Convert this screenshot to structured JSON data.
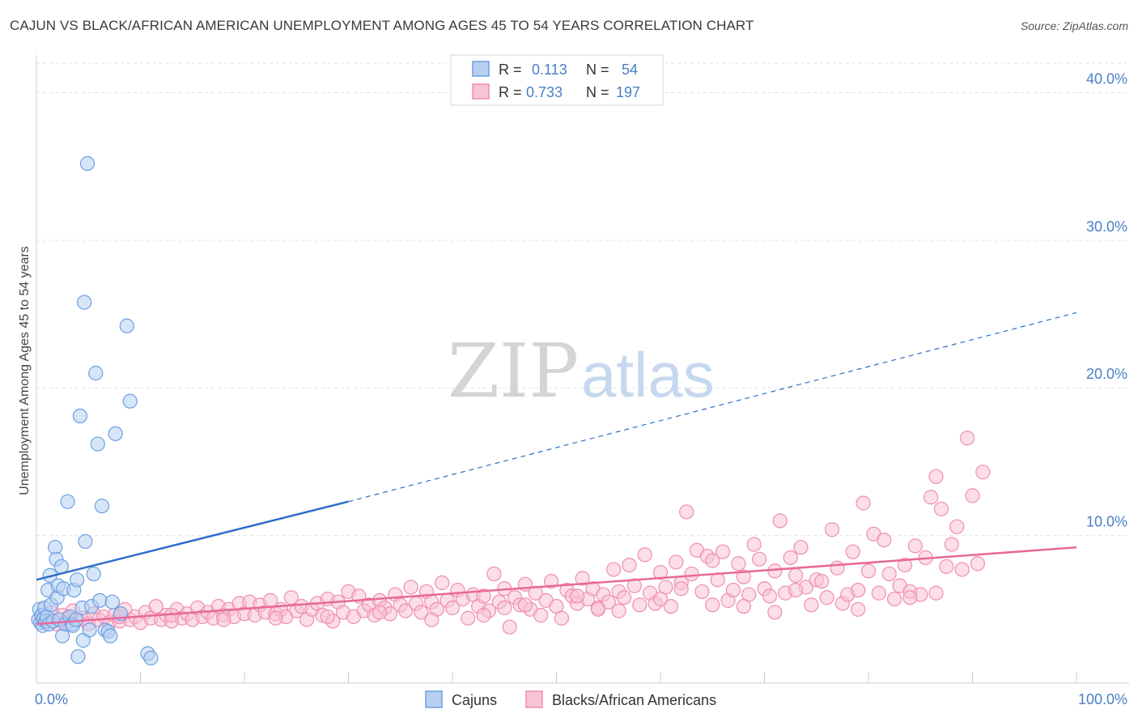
{
  "title": "CAJUN VS BLACK/AFRICAN AMERICAN UNEMPLOYMENT AMONG AGES 45 TO 54 YEARS CORRELATION CHART",
  "source": "Source: ZipAtlas.com",
  "watermark": {
    "zip": "ZIP",
    "atlas": "atlas"
  },
  "colors": {
    "cajun": "#6d9fe0",
    "cajun_fill": "#b7d0f2",
    "black": "#f08db0",
    "black_fill": "#f7c3d6",
    "cajun_line": "#2e6fc8",
    "black_line": "#e8689a",
    "tick": "#4a7fc8"
  },
  "legend": {
    "row1": {
      "r_label": "R =",
      "r_value": "0.113",
      "n_label": "N =",
      "n_value": "54"
    },
    "row2": {
      "r_label": "R =",
      "r_value": "0.733",
      "n_label": "N =",
      "n_value": "197"
    }
  },
  "chart_data": {
    "type": "scatter",
    "title": "CAJUN VS BLACK/AFRICAN AMERICAN UNEMPLOYMENT AMONG AGES 45 TO 54 YEARS CORRELATION CHART",
    "xlabel": "",
    "ylabel": "Unemployment Among Ages 45 to 54 years",
    "xlim": [
      0,
      100
    ],
    "ylim": [
      0,
      42
    ],
    "x_tick_labels": [
      "0.0%",
      "100.0%"
    ],
    "y_ticks": [
      10,
      20,
      30,
      40
    ],
    "y_tick_labels": [
      "10.0%",
      "20.0%",
      "30.0%",
      "40.0%"
    ],
    "grid": true,
    "legend_position": "bottom",
    "series": [
      {
        "name": "Cajuns",
        "r": 0.113,
        "n": 54,
        "trend": {
          "x0": 0,
          "y0": 7.0,
          "x1": 30,
          "y1": 12.3,
          "dashed_to_x": 100,
          "dashed_to_y": 25.1
        },
        "points": [
          [
            0.2,
            4.3
          ],
          [
            0.3,
            5.0
          ],
          [
            0.4,
            4.1
          ],
          [
            0.5,
            4.6
          ],
          [
            0.6,
            3.9
          ],
          [
            0.7,
            4.4
          ],
          [
            0.8,
            5.1
          ],
          [
            0.9,
            4.2
          ],
          [
            1.0,
            4.5
          ],
          [
            1.1,
            6.3
          ],
          [
            1.2,
            4.0
          ],
          [
            1.3,
            7.3
          ],
          [
            1.4,
            5.3
          ],
          [
            1.6,
            4.2
          ],
          [
            1.8,
            9.2
          ],
          [
            1.9,
            8.4
          ],
          [
            2.0,
            5.8
          ],
          [
            2.1,
            6.6
          ],
          [
            2.2,
            4.3
          ],
          [
            2.4,
            7.9
          ],
          [
            2.5,
            3.2
          ],
          [
            2.6,
            6.4
          ],
          [
            2.8,
            4.0
          ],
          [
            3.0,
            12.3
          ],
          [
            3.2,
            4.5
          ],
          [
            3.4,
            4.0
          ],
          [
            3.5,
            3.9
          ],
          [
            3.6,
            6.3
          ],
          [
            3.8,
            4.3
          ],
          [
            3.9,
            7.0
          ],
          [
            4.0,
            1.8
          ],
          [
            4.2,
            18.1
          ],
          [
            4.4,
            5.1
          ],
          [
            4.5,
            2.9
          ],
          [
            4.6,
            25.8
          ],
          [
            4.7,
            9.6
          ],
          [
            4.9,
            35.2
          ],
          [
            5.1,
            3.6
          ],
          [
            5.3,
            5.2
          ],
          [
            5.5,
            7.4
          ],
          [
            5.7,
            21.0
          ],
          [
            5.9,
            16.2
          ],
          [
            6.1,
            5.6
          ],
          [
            6.3,
            12.0
          ],
          [
            6.6,
            3.6
          ],
          [
            6.9,
            3.5
          ],
          [
            7.1,
            3.2
          ],
          [
            7.3,
            5.5
          ],
          [
            7.6,
            16.9
          ],
          [
            8.1,
            4.7
          ],
          [
            8.7,
            24.2
          ],
          [
            9.0,
            19.1
          ],
          [
            10.7,
            2.0
          ],
          [
            11.0,
            1.7
          ]
        ]
      },
      {
        "name": "Blacks/African Americans",
        "r": 0.733,
        "n": 197,
        "trend": {
          "x0": 0,
          "y0": 4.0,
          "x1": 100,
          "y1": 9.2
        },
        "points": [
          [
            0.5,
            4.5
          ],
          [
            1.0,
            4.2
          ],
          [
            1.5,
            4.8
          ],
          [
            2.0,
            4.0
          ],
          [
            2.5,
            4.6
          ],
          [
            3.0,
            4.1
          ],
          [
            3.5,
            4.9
          ],
          [
            4.0,
            4.3
          ],
          [
            4.5,
            4.4
          ],
          [
            5.0,
            4.0
          ],
          [
            5.5,
            4.7
          ],
          [
            6.0,
            4.3
          ],
          [
            6.5,
            4.5
          ],
          [
            7.0,
            4.1
          ],
          [
            7.5,
            4.6
          ],
          [
            8.0,
            4.2
          ],
          [
            8.5,
            5.0
          ],
          [
            9.0,
            4.3
          ],
          [
            9.5,
            4.5
          ],
          [
            10.0,
            4.1
          ],
          [
            10.5,
            4.8
          ],
          [
            11.0,
            4.4
          ],
          [
            11.5,
            5.2
          ],
          [
            12.0,
            4.3
          ],
          [
            12.5,
            4.6
          ],
          [
            13.0,
            4.2
          ],
          [
            13.5,
            5.0
          ],
          [
            14.0,
            4.4
          ],
          [
            14.5,
            4.7
          ],
          [
            15.0,
            4.3
          ],
          [
            15.5,
            5.1
          ],
          [
            16.0,
            4.5
          ],
          [
            16.5,
            4.8
          ],
          [
            17.0,
            4.4
          ],
          [
            17.5,
            5.2
          ],
          [
            18.0,
            4.6
          ],
          [
            18.5,
            5.0
          ],
          [
            19.0,
            4.5
          ],
          [
            19.5,
            5.4
          ],
          [
            20.0,
            4.7
          ],
          [
            20.5,
            5.5
          ],
          [
            21.0,
            4.6
          ],
          [
            21.5,
            5.3
          ],
          [
            22.0,
            4.8
          ],
          [
            22.5,
            5.6
          ],
          [
            23.0,
            4.7
          ],
          [
            23.5,
            5.0
          ],
          [
            24.0,
            4.5
          ],
          [
            24.5,
            5.8
          ],
          [
            25.0,
            4.9
          ],
          [
            25.5,
            5.2
          ],
          [
            26.0,
            4.3
          ],
          [
            26.5,
            5.0
          ],
          [
            27.0,
            5.4
          ],
          [
            27.5,
            4.6
          ],
          [
            28.0,
            5.7
          ],
          [
            28.5,
            4.2
          ],
          [
            29.0,
            5.5
          ],
          [
            29.5,
            4.8
          ],
          [
            30.0,
            6.2
          ],
          [
            30.5,
            4.5
          ],
          [
            31.0,
            5.9
          ],
          [
            31.5,
            4.9
          ],
          [
            32.0,
            5.3
          ],
          [
            32.5,
            4.6
          ],
          [
            33.0,
            5.6
          ],
          [
            33.5,
            5.1
          ],
          [
            34.0,
            4.7
          ],
          [
            34.5,
            6.0
          ],
          [
            35.0,
            5.3
          ],
          [
            35.5,
            4.9
          ],
          [
            36.0,
            6.5
          ],
          [
            36.5,
            5.4
          ],
          [
            37.0,
            4.8
          ],
          [
            37.5,
            6.2
          ],
          [
            38.0,
            5.5
          ],
          [
            38.5,
            5.0
          ],
          [
            39.0,
            6.8
          ],
          [
            39.5,
            5.6
          ],
          [
            40.0,
            5.1
          ],
          [
            40.5,
            6.3
          ],
          [
            41.0,
            5.7
          ],
          [
            41.5,
            4.4
          ],
          [
            42.0,
            6.0
          ],
          [
            42.5,
            5.2
          ],
          [
            43.0,
            5.9
          ],
          [
            43.5,
            4.9
          ],
          [
            44.0,
            7.4
          ],
          [
            44.5,
            5.5
          ],
          [
            45.0,
            6.4
          ],
          [
            45.5,
            3.8
          ],
          [
            46.0,
            5.8
          ],
          [
            46.5,
            5.3
          ],
          [
            47.0,
            6.7
          ],
          [
            47.5,
            5.0
          ],
          [
            48.0,
            6.1
          ],
          [
            48.5,
            4.6
          ],
          [
            49.0,
            5.6
          ],
          [
            49.5,
            6.9
          ],
          [
            50.0,
            5.2
          ],
          [
            50.5,
            4.4
          ],
          [
            51.0,
            6.3
          ],
          [
            51.5,
            5.9
          ],
          [
            52.0,
            5.4
          ],
          [
            52.5,
            7.1
          ],
          [
            53.0,
            5.7
          ],
          [
            53.5,
            6.4
          ],
          [
            54.0,
            5.1
          ],
          [
            54.5,
            6.0
          ],
          [
            55.0,
            5.5
          ],
          [
            55.5,
            7.7
          ],
          [
            56.0,
            6.2
          ],
          [
            56.5,
            5.8
          ],
          [
            57.0,
            8.0
          ],
          [
            57.5,
            6.6
          ],
          [
            58.0,
            5.3
          ],
          [
            58.5,
            8.7
          ],
          [
            59.0,
            6.1
          ],
          [
            59.5,
            5.4
          ],
          [
            60.0,
            7.5
          ],
          [
            60.5,
            6.5
          ],
          [
            61.0,
            5.2
          ],
          [
            61.5,
            8.2
          ],
          [
            62.0,
            6.8
          ],
          [
            62.5,
            11.6
          ],
          [
            63.0,
            7.4
          ],
          [
            63.5,
            9.0
          ],
          [
            64.0,
            6.2
          ],
          [
            64.5,
            8.6
          ],
          [
            65.0,
            5.3
          ],
          [
            65.5,
            7.0
          ],
          [
            66.0,
            8.9
          ],
          [
            66.5,
            5.6
          ],
          [
            67.0,
            6.3
          ],
          [
            67.5,
            8.1
          ],
          [
            68.0,
            7.2
          ],
          [
            68.5,
            6.0
          ],
          [
            69.0,
            9.4
          ],
          [
            69.5,
            8.4
          ],
          [
            70.0,
            6.4
          ],
          [
            70.5,
            5.9
          ],
          [
            71.0,
            7.6
          ],
          [
            71.5,
            11.0
          ],
          [
            72.0,
            6.1
          ],
          [
            72.5,
            8.5
          ],
          [
            73.0,
            7.3
          ],
          [
            73.5,
            9.2
          ],
          [
            74.0,
            6.5
          ],
          [
            74.5,
            5.3
          ],
          [
            75.0,
            7.0
          ],
          [
            75.5,
            6.9
          ],
          [
            76.0,
            5.8
          ],
          [
            76.5,
            10.4
          ],
          [
            77.0,
            7.8
          ],
          [
            77.5,
            5.4
          ],
          [
            78.0,
            6.0
          ],
          [
            78.5,
            8.9
          ],
          [
            79.0,
            6.3
          ],
          [
            79.5,
            12.2
          ],
          [
            80.0,
            7.6
          ],
          [
            80.5,
            10.1
          ],
          [
            81.0,
            6.1
          ],
          [
            81.5,
            9.7
          ],
          [
            82.0,
            7.4
          ],
          [
            82.5,
            5.7
          ],
          [
            83.0,
            6.6
          ],
          [
            83.5,
            8.0
          ],
          [
            84.0,
            6.2
          ],
          [
            84.5,
            9.3
          ],
          [
            85.0,
            6.0
          ],
          [
            85.5,
            8.5
          ],
          [
            86.0,
            12.6
          ],
          [
            86.5,
            14.0
          ],
          [
            87.0,
            11.8
          ],
          [
            87.5,
            7.9
          ],
          [
            88.0,
            9.4
          ],
          [
            88.5,
            10.6
          ],
          [
            89.0,
            7.7
          ],
          [
            89.5,
            16.6
          ],
          [
            90.0,
            12.7
          ],
          [
            90.5,
            8.1
          ],
          [
            91.0,
            14.3
          ],
          [
            84.0,
            5.8
          ],
          [
            73.0,
            6.3
          ],
          [
            68.0,
            5.2
          ],
          [
            65.0,
            8.3
          ],
          [
            60.0,
            5.7
          ],
          [
            56.0,
            4.9
          ],
          [
            52.0,
            5.9
          ],
          [
            47.0,
            5.3
          ],
          [
            43.0,
            4.6
          ],
          [
            38.0,
            4.3
          ],
          [
            33.0,
            4.8
          ],
          [
            28.0,
            4.5
          ],
          [
            23.0,
            4.4
          ],
          [
            18.0,
            4.3
          ],
          [
            13.0,
            4.6
          ],
          [
            8.0,
            4.5
          ],
          [
            3.0,
            4.4
          ],
          [
            79.0,
            5.0
          ],
          [
            86.5,
            6.1
          ],
          [
            71.0,
            4.8
          ],
          [
            62.0,
            6.4
          ],
          [
            54.0,
            5.0
          ],
          [
            45.0,
            5.1
          ]
        ]
      }
    ]
  },
  "bottom_legend": {
    "cajuns": "Cajuns",
    "blacks": "Blacks/African Americans"
  }
}
